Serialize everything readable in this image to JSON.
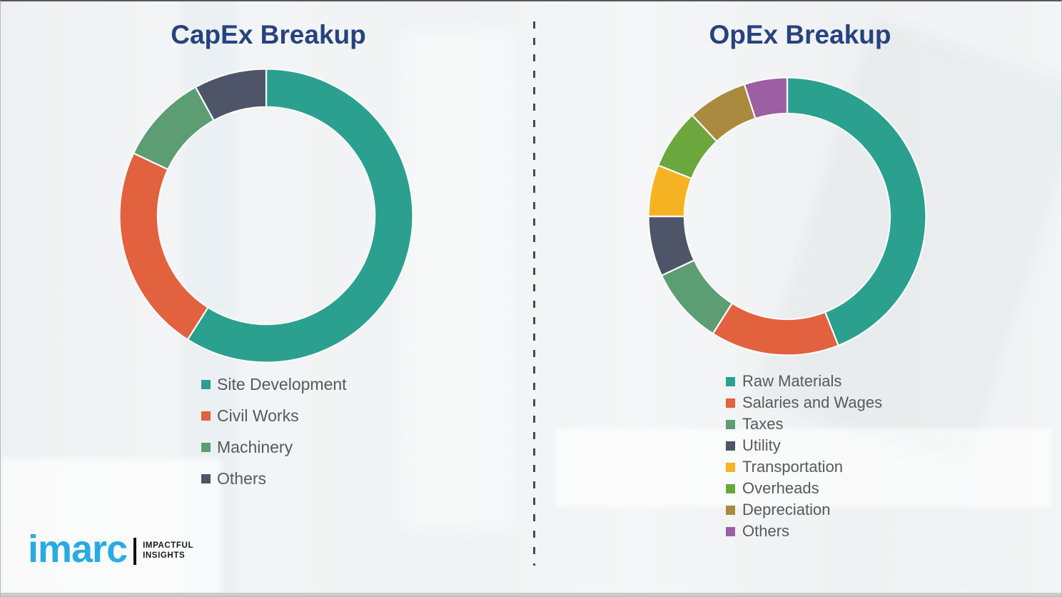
{
  "slide": {
    "background_color": "#f1f2f3",
    "divider_style": "vertical dashed gray line between the two charts"
  },
  "chart_data": [
    {
      "type": "pie",
      "subtype": "donut",
      "title": "CapEx Breakup",
      "categories": [
        "Site Development",
        "Civil Works",
        "Machinery",
        "Others"
      ],
      "values": [
        59,
        23,
        10,
        8
      ],
      "unit": "percent (estimated from arc angles; no data labels shown)",
      "colors": [
        "#2BA08F",
        "#E2613F",
        "#5C9D74",
        "#4E5568"
      ],
      "start_angle": "12 o'clock, clockwise",
      "legend_position": "below chart, left aligned",
      "title_color": "#27427E"
    },
    {
      "type": "pie",
      "subtype": "donut",
      "title": "OpEx Breakup",
      "categories": [
        "Raw Materials",
        "Salaries and Wages",
        "Taxes",
        "Utility",
        "Transportation",
        "Overheads",
        "Depreciation",
        "Others"
      ],
      "values": [
        44,
        15,
        9,
        7,
        6,
        7,
        7,
        5
      ],
      "unit": "percent (estimated from arc angles; no data labels shown)",
      "colors": [
        "#2BA08F",
        "#E2613F",
        "#5C9D74",
        "#4E5568",
        "#F5B324",
        "#6CA73E",
        "#A98A3E",
        "#9D5FA4"
      ],
      "start_angle": "12 o'clock, clockwise",
      "legend_position": "below chart, left aligned",
      "title_color": "#27427E"
    }
  ],
  "logo": {
    "brand": "imarc",
    "brand_color": "#29ABE2",
    "tagline": [
      "IMPACTFUL",
      "INSIGHTS"
    ]
  }
}
